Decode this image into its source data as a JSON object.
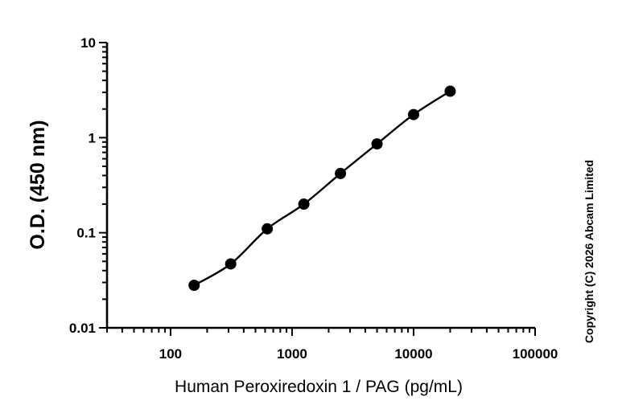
{
  "chart_data": {
    "type": "scatter",
    "xlabel": "Human Peroxiredoxin 1 / PAG (pg/mL)",
    "ylabel": "O.D. (450 nm)",
    "x_scale": "log",
    "y_scale": "log",
    "xlim": [
      30,
      100000
    ],
    "ylim": [
      0.01,
      10
    ],
    "x_tick_labels": [
      "100",
      "1000",
      "10000",
      "100000"
    ],
    "y_tick_labels": [
      "0.01",
      "0.1",
      "1",
      "10"
    ],
    "grid": false,
    "fit_line": true,
    "series": [
      {
        "x": [
          156.25,
          312.5,
          625,
          1250,
          2500,
          5000,
          10000,
          20000
        ],
        "y": [
          0.028,
          0.047,
          0.11,
          0.2,
          0.42,
          0.86,
          1.75,
          3.08
        ]
      }
    ],
    "colors": {
      "marker": "#000000",
      "line": "#000000"
    }
  },
  "copyright": "Copyright (C) 2026 Abcam Limited"
}
